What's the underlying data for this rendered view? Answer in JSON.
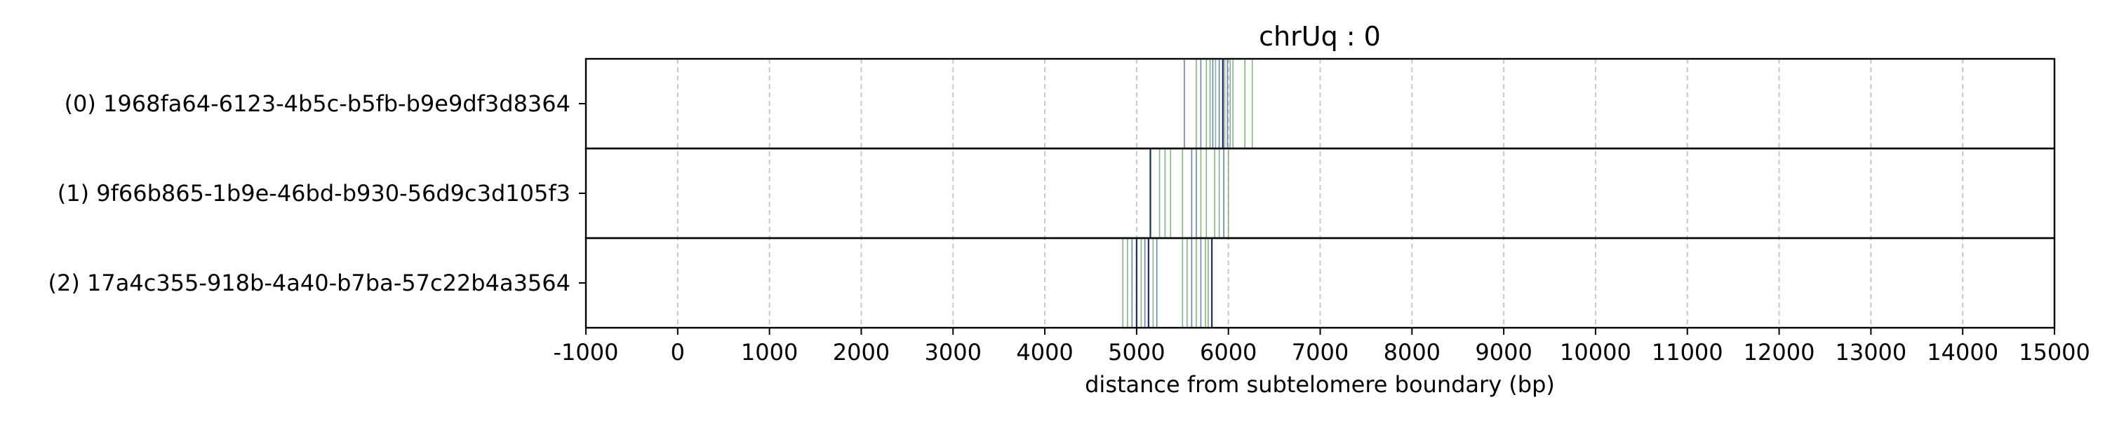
{
  "chart_data": {
    "type": "strip",
    "title": "chrUq : 0",
    "xlabel": "distance from subtelomere boundary (bp)",
    "xlim": [
      -1000,
      15000
    ],
    "xticks": [
      -1000,
      0,
      1000,
      2000,
      3000,
      4000,
      5000,
      6000,
      7000,
      8000,
      9000,
      10000,
      11000,
      12000,
      13000,
      14000,
      15000
    ],
    "grid": "x-dashed",
    "colors": {
      "blue": "#6a7fbf",
      "green": "#7fb87f",
      "navy": "#1a2a6e",
      "grid": "#c8c8c8"
    },
    "rows": [
      {
        "label": "(0) 1968fa64-6123-4b5c-b5fb-b9e9df3d8364",
        "marks": [
          {
            "x": 5520,
            "color": "blue"
          },
          {
            "x": 5650,
            "color": "green"
          },
          {
            "x": 5700,
            "color": "blue"
          },
          {
            "x": 5760,
            "color": "green"
          },
          {
            "x": 5800,
            "color": "green"
          },
          {
            "x": 5830,
            "color": "blue"
          },
          {
            "x": 5860,
            "color": "green"
          },
          {
            "x": 5900,
            "color": "blue"
          },
          {
            "x": 5940,
            "color": "navy"
          },
          {
            "x": 5960,
            "color": "green"
          },
          {
            "x": 5990,
            "color": "blue"
          },
          {
            "x": 6020,
            "color": "green"
          },
          {
            "x": 6050,
            "color": "green"
          },
          {
            "x": 6180,
            "color": "green"
          },
          {
            "x": 6260,
            "color": "green"
          }
        ]
      },
      {
        "label": "(1) 9f66b865-1b9e-46bd-b930-56d9c3d105f3",
        "marks": [
          {
            "x": 5150,
            "color": "navy"
          },
          {
            "x": 5250,
            "color": "green"
          },
          {
            "x": 5310,
            "color": "green"
          },
          {
            "x": 5370,
            "color": "green"
          },
          {
            "x": 5500,
            "color": "green"
          },
          {
            "x": 5600,
            "color": "blue"
          },
          {
            "x": 5650,
            "color": "blue"
          },
          {
            "x": 5700,
            "color": "green"
          },
          {
            "x": 5760,
            "color": "green"
          },
          {
            "x": 5850,
            "color": "green"
          },
          {
            "x": 5900,
            "color": "green"
          },
          {
            "x": 5950,
            "color": "blue"
          },
          {
            "x": 6000,
            "color": "green"
          }
        ]
      },
      {
        "label": "(2) 17a4c355-918b-4a40-b7ba-57c22b4a3564",
        "marks": [
          {
            "x": 4850,
            "color": "green"
          },
          {
            "x": 4900,
            "color": "green"
          },
          {
            "x": 4950,
            "color": "blue"
          },
          {
            "x": 5000,
            "color": "navy"
          },
          {
            "x": 5050,
            "color": "green"
          },
          {
            "x": 5090,
            "color": "blue"
          },
          {
            "x": 5130,
            "color": "navy"
          },
          {
            "x": 5180,
            "color": "green"
          },
          {
            "x": 5220,
            "color": "blue"
          },
          {
            "x": 5500,
            "color": "green"
          },
          {
            "x": 5550,
            "color": "green"
          },
          {
            "x": 5600,
            "color": "blue"
          },
          {
            "x": 5650,
            "color": "green"
          },
          {
            "x": 5700,
            "color": "blue"
          },
          {
            "x": 5750,
            "color": "green"
          },
          {
            "x": 5780,
            "color": "green"
          },
          {
            "x": 5820,
            "color": "navy"
          }
        ]
      }
    ]
  }
}
